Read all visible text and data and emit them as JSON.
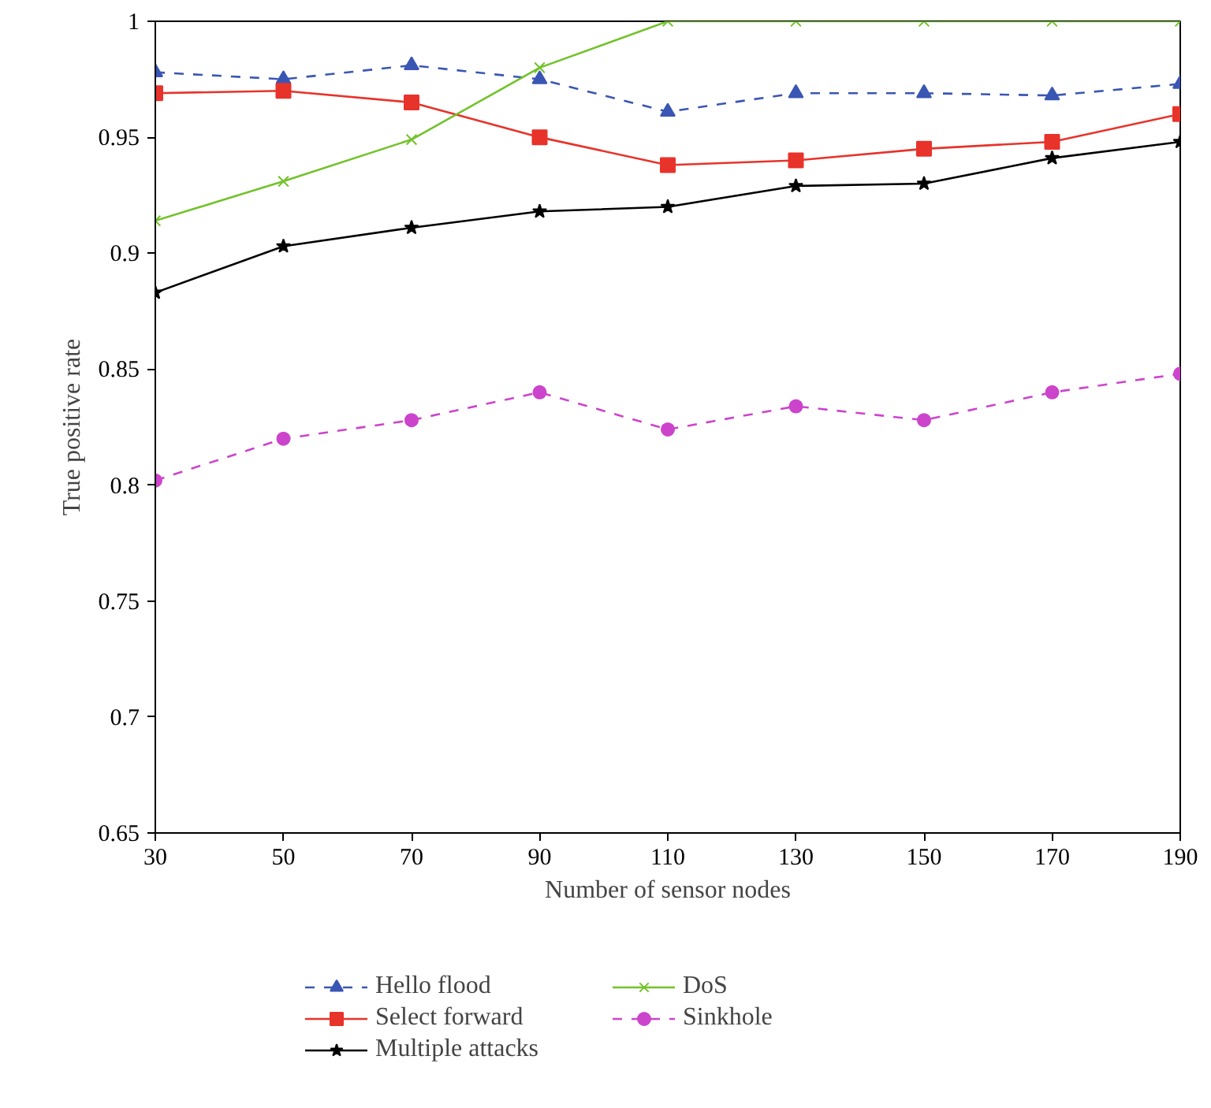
{
  "chart_data": {
    "type": "line",
    "xlabel": "Number of sensor nodes",
    "ylabel": "True positive rate",
    "x": [
      30,
      50,
      70,
      90,
      110,
      130,
      150,
      170,
      190
    ],
    "xlim": [
      30,
      190
    ],
    "xticks": [
      30,
      50,
      70,
      90,
      110,
      130,
      150,
      170,
      190
    ],
    "ylim": [
      0.65,
      1
    ],
    "yticks": [
      0.65,
      0.7,
      0.75,
      0.8,
      0.85,
      0.9,
      0.95,
      1
    ],
    "grid": false,
    "legend": "bottom",
    "series": [
      {
        "name": "Hello flood",
        "color": "#3a56b4",
        "marker": "triangle",
        "line_style": "dashed",
        "values": [
          0.978,
          0.975,
          0.981,
          0.975,
          0.961,
          0.969,
          0.969,
          0.968,
          0.973
        ]
      },
      {
        "name": "Select forward",
        "color": "#e8332a",
        "marker": "square",
        "line_style": "solid",
        "values": [
          0.969,
          0.97,
          0.965,
          0.95,
          0.938,
          0.94,
          0.945,
          0.948,
          0.96
        ]
      },
      {
        "name": "Multiple attacks",
        "color": "#000000",
        "marker": "star",
        "line_style": "solid",
        "values": [
          0.883,
          0.903,
          0.911,
          0.918,
          0.92,
          0.929,
          0.93,
          0.941,
          0.948
        ]
      },
      {
        "name": "DoS",
        "color": "#72c22a",
        "marker": "cross",
        "line_style": "solid",
        "values": [
          0.914,
          0.931,
          0.949,
          0.98,
          1,
          1,
          1,
          1,
          1
        ]
      },
      {
        "name": "Sinkhole",
        "color": "#cc44cc",
        "marker": "circle",
        "line_style": "dashed",
        "values": [
          0.802,
          0.82,
          0.828,
          0.84,
          0.824,
          0.834,
          0.828,
          0.84,
          0.848
        ]
      }
    ]
  }
}
